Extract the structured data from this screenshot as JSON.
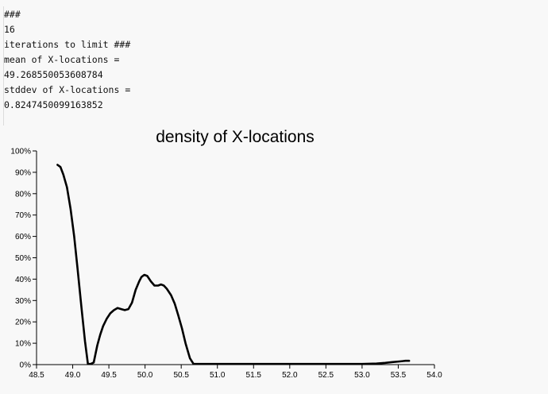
{
  "output": {
    "lines": [
      "###",
      "16",
      "iterations to limit ###",
      "mean of X-locations =",
      "49.268550053608784",
      "stddev of X-locations =",
      "0.8247450099163852"
    ]
  },
  "chart_data": {
    "type": "line",
    "title": "density of X-locations",
    "xlabel": "",
    "ylabel": "",
    "xlim": [
      48.5,
      54.0
    ],
    "ylim": [
      0,
      100
    ],
    "x_ticks": [
      "48.5",
      "49.0",
      "49.5",
      "50.0",
      "50.5",
      "51.0",
      "51.5",
      "52.0",
      "52.5",
      "53.0",
      "53.5",
      "54.0"
    ],
    "y_ticks": [
      "0%",
      "10%",
      "20%",
      "30%",
      "40%",
      "50%",
      "60%",
      "70%",
      "80%",
      "90%",
      "100%"
    ],
    "grid": false,
    "legend": "none",
    "line_color": "#000000",
    "series": [
      {
        "x": [
          48.79,
          48.83,
          48.87,
          48.92,
          48.97,
          49.02,
          49.07,
          49.12,
          49.17,
          49.21,
          49.25,
          49.29,
          49.34,
          49.38,
          49.42,
          49.47,
          49.52,
          49.57,
          49.62,
          49.67,
          49.72,
          49.77,
          49.82,
          49.87,
          49.92,
          49.95,
          49.99,
          50.03,
          50.08,
          50.13,
          50.18,
          50.22,
          50.26,
          50.3,
          50.36,
          50.41,
          50.46,
          50.51,
          50.56,
          50.62,
          50.67,
          50.72,
          50.77,
          50.82,
          50.87,
          50.91,
          50.95,
          51.0,
          51.5,
          52.0,
          52.5,
          53.0,
          53.2,
          53.32,
          53.42,
          53.52,
          53.6,
          53.65
        ],
        "y": [
          93.5,
          92.5,
          89,
          83,
          73,
          60,
          44,
          27,
          11,
          0.3,
          0.3,
          1,
          9,
          14,
          18,
          21.5,
          24,
          25.5,
          26.5,
          26,
          25.5,
          26,
          29,
          35,
          39,
          41,
          42,
          41.5,
          39,
          37,
          37,
          37.5,
          37,
          35.5,
          32.5,
          28.5,
          23,
          17,
          10,
          3,
          0.3,
          0.3,
          0.3,
          0.3,
          0.3,
          0.3,
          0.3,
          0.3,
          0.3,
          0.3,
          0.3,
          0.3,
          0.5,
          0.8,
          1.2,
          1.5,
          1.8,
          1.8
        ]
      }
    ]
  }
}
